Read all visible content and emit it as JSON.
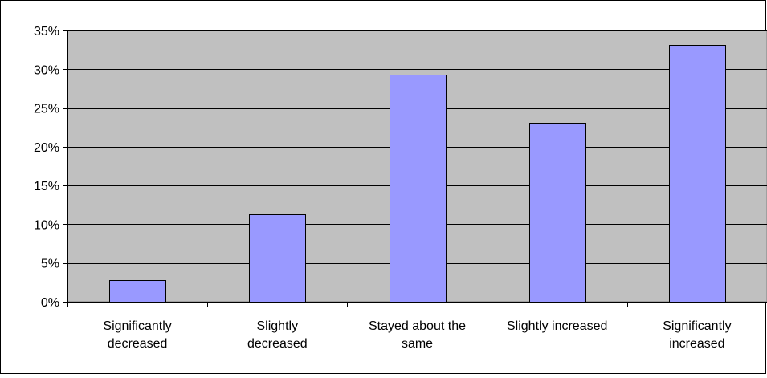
{
  "chart_data": {
    "type": "bar",
    "title": "",
    "xlabel": "",
    "ylabel": "",
    "categories": [
      [
        "Significantly",
        "decreased"
      ],
      [
        "Slightly",
        "decreased"
      ],
      [
        "Stayed about the",
        "same"
      ],
      [
        "Slightly increased"
      ],
      [
        "Significantly",
        "increased"
      ]
    ],
    "values": [
      2.8,
      11.3,
      29.3,
      23.1,
      33.1
    ],
    "ylim": [
      0,
      35
    ],
    "yticks": [
      0,
      5,
      10,
      15,
      20,
      25,
      30,
      35
    ],
    "ytick_labels": [
      "0%",
      "5%",
      "10%",
      "15%",
      "20%",
      "25%",
      "30%",
      "35%"
    ],
    "grid": true,
    "legend": "none"
  },
  "colors": {
    "plot_background": "#c0c0c0",
    "bar_fill": "#9999ff",
    "bar_stroke": "#000000",
    "gridline": "#000000",
    "frame": "#000000"
  }
}
